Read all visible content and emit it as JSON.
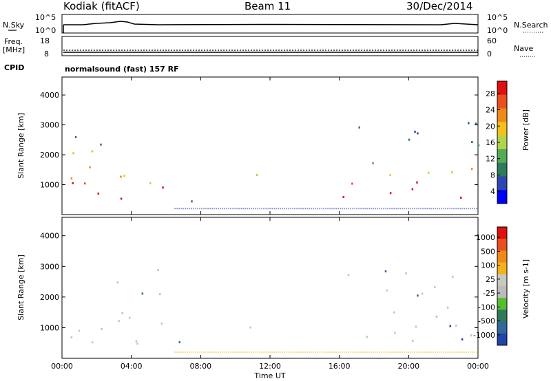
{
  "header": {
    "station": "Kodiak (fitACF)",
    "beam": "Beam 11",
    "date": "30/Dec/2014"
  },
  "top_panels": {
    "nsky_label": "N.Sky",
    "nsearch_label": "N.Search",
    "count_ticks": [
      "10^5",
      "10^0"
    ],
    "freq_label_1": "Freq.",
    "freq_label_2": "[MHz]",
    "freq_ticks": [
      "18",
      "8"
    ],
    "nave_label": "Nave",
    "nave_ticks": [
      "60",
      "0"
    ],
    "cpid_label": "CPID",
    "cpid_value": "normalsound (fast) 157 RF"
  },
  "colors": {
    "power": [
      "#0000ff",
      "#2e47b0",
      "#2f7a5a",
      "#55aa55",
      "#b2d34a",
      "#f2c21a",
      "#f08a16",
      "#e8501e",
      "#e01010"
    ],
    "velocity": [
      "#2244aa",
      "#336699",
      "#2f7a5a",
      "#55bb33",
      "#bbbbbb",
      "#c8c8c0",
      "#f2b21a",
      "#f08a16",
      "#e8501e",
      "#e01010"
    ],
    "ground": "#c4c4bc"
  },
  "chart_data": [
    {
      "type": "heatmap",
      "title": "",
      "quantity": "Power",
      "ylabel": "Slant Range [km]",
      "xlabel": "Time UT",
      "xlim": [
        "00:00",
        "24:00"
      ],
      "ylim": [
        0,
        4600
      ],
      "x_ticks": [
        "00:00",
        "04:00",
        "08:00",
        "12:00",
        "16:00",
        "20:00",
        "00:00"
      ],
      "y_ticks": [
        1000,
        2000,
        3000,
        4000
      ],
      "colorbar_label": "Power [dB]",
      "colorbar_ticks": [
        "28",
        "24",
        "20",
        "16",
        "12",
        "8",
        "4"
      ],
      "colorbar_range": [
        0,
        30
      ],
      "echo_regions": [
        {
          "t": [
            0.5,
            6.0
          ],
          "r": [
            500,
            3200
          ],
          "level": "strong"
        },
        {
          "t": [
            6.3,
            7.5
          ],
          "r": [
            300,
            1600
          ],
          "level": "moderate"
        },
        {
          "t": [
            10.0,
            11.5
          ],
          "r": [
            900,
            1400
          ],
          "level": "weak"
        },
        {
          "t": [
            15.8,
            24.0
          ],
          "r": [
            600,
            3100
          ],
          "level": "strong"
        }
      ]
    },
    {
      "type": "heatmap",
      "title": "",
      "quantity": "Velocity",
      "ylabel": "Slant Range [km]",
      "xlabel": "Time UT",
      "xlim": [
        "00:00",
        "24:00"
      ],
      "ylim": [
        0,
        4600
      ],
      "x_ticks": [
        "00:00",
        "04:00",
        "08:00",
        "12:00",
        "16:00",
        "20:00",
        "00:00"
      ],
      "y_ticks": [
        1000,
        2000,
        3000,
        4000
      ],
      "colorbar_label": "Velocity [m s-1]",
      "colorbar_ticks": [
        "1000",
        "500",
        "100",
        "25",
        "-25",
        "-100",
        "-500",
        "-1000"
      ],
      "colorbar_range": [
        -1000,
        1000
      ],
      "echo_regions": [
        {
          "t": [
            0.5,
            6.0
          ],
          "r": [
            500,
            3200
          ],
          "level": "ground_scatter"
        },
        {
          "t": [
            6.3,
            7.5
          ],
          "r": [
            300,
            1600
          ],
          "level": "mixed"
        },
        {
          "t": [
            10.0,
            11.5
          ],
          "r": [
            900,
            1400
          ],
          "level": "ground_scatter"
        },
        {
          "t": [
            15.8,
            24.0
          ],
          "r": [
            600,
            3100
          ],
          "level": "ground_scatter"
        }
      ]
    }
  ]
}
